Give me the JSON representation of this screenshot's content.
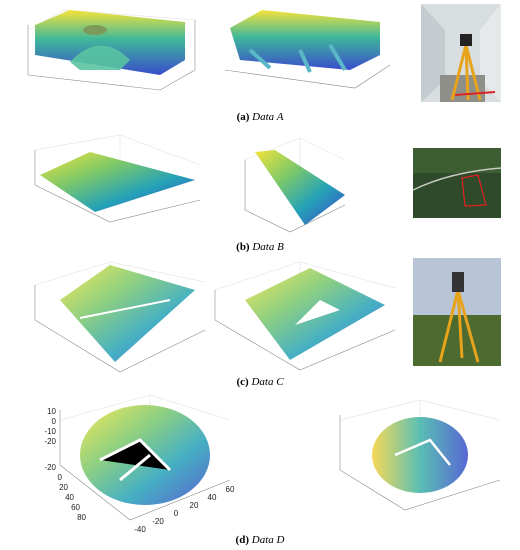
{
  "panels": [
    {
      "label": "(a)",
      "name": "Data A"
    },
    {
      "label": "(b)",
      "name": "Data B"
    },
    {
      "label": "(c)",
      "name": "Data C"
    },
    {
      "label": "(d)",
      "name": "Data D"
    }
  ],
  "plot_d_left": {
    "z_ticks": [
      "10",
      "0",
      "-10",
      "-20"
    ],
    "y_ticks": [
      "-20",
      "0",
      "20",
      "40",
      "60",
      "80"
    ],
    "x_ticks": [
      "-40",
      "-20",
      "0",
      "20",
      "40",
      "60"
    ]
  }
}
